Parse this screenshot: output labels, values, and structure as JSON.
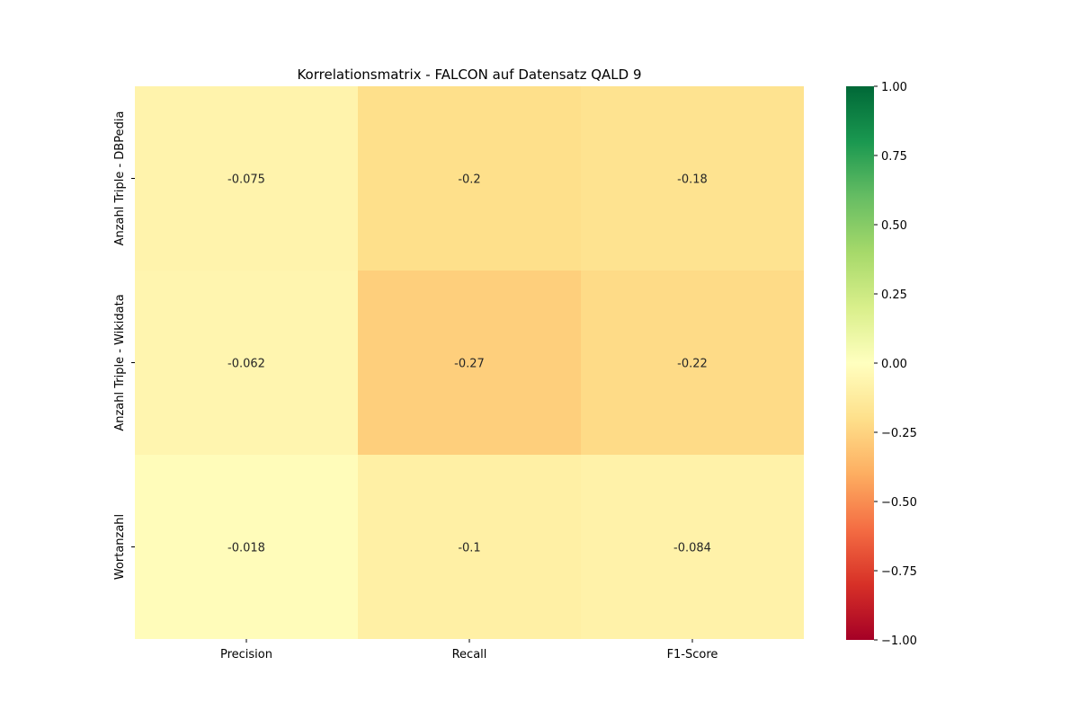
{
  "chart_data": {
    "type": "heatmap",
    "title": "Korrelationsmatrix - FALCON auf Datensatz QALD 9",
    "columns": [
      "Precision",
      "Recall",
      "F1-Score"
    ],
    "rows": [
      "Anzahl Triple - DBPedia",
      "Anzahl Triple - Wikidata",
      "Wortanzahl"
    ],
    "values": [
      [
        -0.075,
        -0.2,
        -0.18
      ],
      [
        -0.062,
        -0.27,
        -0.22
      ],
      [
        -0.018,
        -0.1,
        -0.084
      ]
    ],
    "value_labels": [
      [
        "-0.075",
        "-0.2",
        "-0.18"
      ],
      [
        "-0.062",
        "-0.27",
        "-0.22"
      ],
      [
        "-0.018",
        "-0.1",
        "-0.084"
      ]
    ],
    "colorbar": {
      "range": [
        -1,
        1
      ],
      "colormap": "RdYlGn",
      "ticks": [
        1.0,
        0.75,
        0.5,
        0.25,
        0.0,
        -0.25,
        -0.5,
        -0.75,
        -1.0
      ],
      "tick_labels": [
        "1.00",
        "0.75",
        "0.50",
        "0.25",
        "0.00",
        "−0.25",
        "−0.50",
        "−0.75",
        "−1.00"
      ]
    }
  }
}
